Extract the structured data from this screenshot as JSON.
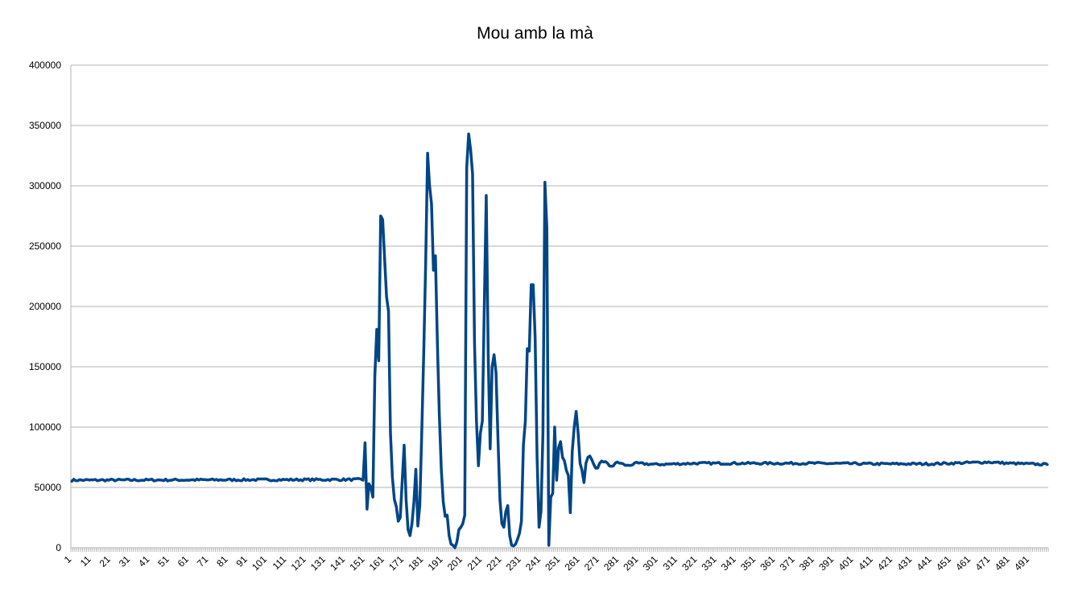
{
  "chart_data": {
    "type": "line",
    "title": "Mou amb la mà",
    "xlabel": "",
    "ylabel": "",
    "ylim": [
      0,
      400000
    ],
    "yticks": [
      0,
      50000,
      100000,
      150000,
      200000,
      250000,
      300000,
      350000,
      400000
    ],
    "ytick_labels": [
      "0",
      "50000",
      "100000",
      "150000",
      "200000",
      "250000",
      "300000",
      "350000",
      "400000"
    ],
    "x_range": [
      1,
      500
    ],
    "xtick_labels": [
      "1",
      "11",
      "21",
      "31",
      "41",
      "51",
      "61",
      "71",
      "81",
      "91",
      "101",
      "111",
      "121",
      "131",
      "141",
      "151",
      "161",
      "171",
      "181",
      "191",
      "201",
      "211",
      "221",
      "231",
      "241",
      "251",
      "261",
      "271",
      "281",
      "291",
      "301",
      "311",
      "321",
      "331",
      "341",
      "351",
      "361",
      "371",
      "381",
      "391",
      "401",
      "411",
      "421",
      "431",
      "441",
      "451",
      "461",
      "471",
      "481",
      "491"
    ],
    "grid": "horizontal",
    "legend": "none",
    "series": [
      {
        "color": "#004586",
        "points": [
          [
            1,
            56000
          ],
          [
            148,
            56500
          ],
          [
            150,
            56000
          ],
          [
            151,
            87000
          ],
          [
            152,
            32000
          ],
          [
            153,
            53000
          ],
          [
            154,
            50000
          ],
          [
            155,
            42000
          ],
          [
            156,
            142000
          ],
          [
            157,
            181000
          ],
          [
            158,
            155000
          ],
          [
            159,
            275000
          ],
          [
            160,
            272000
          ],
          [
            161,
            240000
          ],
          [
            162,
            208000
          ],
          [
            163,
            196000
          ],
          [
            164,
            95000
          ],
          [
            165,
            58000
          ],
          [
            166,
            40000
          ],
          [
            167,
            34000
          ],
          [
            168,
            22000
          ],
          [
            169,
            25000
          ],
          [
            170,
            55000
          ],
          [
            171,
            85000
          ],
          [
            172,
            40000
          ],
          [
            173,
            15000
          ],
          [
            174,
            10000
          ],
          [
            175,
            20000
          ],
          [
            176,
            38000
          ],
          [
            177,
            65000
          ],
          [
            178,
            18000
          ],
          [
            179,
            35000
          ],
          [
            180,
            95000
          ],
          [
            181,
            160000
          ],
          [
            182,
            235000
          ],
          [
            183,
            327000
          ],
          [
            184,
            300000
          ],
          [
            185,
            285000
          ],
          [
            186,
            230000
          ],
          [
            187,
            242000
          ],
          [
            188,
            170000
          ],
          [
            189,
            110000
          ],
          [
            190,
            65000
          ],
          [
            191,
            38000
          ],
          [
            192,
            26000
          ],
          [
            193,
            27000
          ],
          [
            194,
            10000
          ],
          [
            195,
            3000
          ],
          [
            196,
            2000
          ],
          [
            197,
            0
          ],
          [
            198,
            5000
          ],
          [
            199,
            15000
          ],
          [
            200,
            17000
          ],
          [
            201,
            20000
          ],
          [
            202,
            27000
          ],
          [
            203,
            315000
          ],
          [
            204,
            343000
          ],
          [
            205,
            330000
          ],
          [
            206,
            310000
          ],
          [
            207,
            170000
          ],
          [
            208,
            105000
          ],
          [
            209,
            68000
          ],
          [
            210,
            95000
          ],
          [
            211,
            105000
          ],
          [
            212,
            200000
          ],
          [
            213,
            292000
          ],
          [
            214,
            160000
          ],
          [
            215,
            82000
          ],
          [
            216,
            150000
          ],
          [
            217,
            160000
          ],
          [
            218,
            145000
          ],
          [
            219,
            90000
          ],
          [
            220,
            40000
          ],
          [
            221,
            20000
          ],
          [
            222,
            17000
          ],
          [
            223,
            30000
          ],
          [
            224,
            35000
          ],
          [
            225,
            10000
          ],
          [
            226,
            2000
          ],
          [
            227,
            1500
          ],
          [
            228,
            3000
          ],
          [
            229,
            7000
          ],
          [
            230,
            12000
          ],
          [
            231,
            22000
          ],
          [
            232,
            85000
          ],
          [
            233,
            105000
          ],
          [
            234,
            165000
          ],
          [
            235,
            163000
          ],
          [
            236,
            218000
          ],
          [
            237,
            218000
          ],
          [
            238,
            175000
          ],
          [
            239,
            75000
          ],
          [
            240,
            17000
          ],
          [
            241,
            30000
          ],
          [
            242,
            95000
          ],
          [
            243,
            303000
          ],
          [
            244,
            265000
          ],
          [
            245,
            2000
          ],
          [
            246,
            42000
          ],
          [
            247,
            45000
          ],
          [
            248,
            100000
          ],
          [
            249,
            56000
          ],
          [
            250,
            83000
          ],
          [
            251,
            88000
          ],
          [
            252,
            75000
          ],
          [
            253,
            72000
          ],
          [
            254,
            64000
          ],
          [
            255,
            60000
          ],
          [
            256,
            29000
          ],
          [
            257,
            80000
          ],
          [
            258,
            100000
          ],
          [
            259,
            113000
          ],
          [
            260,
            95000
          ],
          [
            261,
            70000
          ],
          [
            262,
            64000
          ],
          [
            263,
            54000
          ],
          [
            264,
            70000
          ],
          [
            265,
            75000
          ],
          [
            266,
            76000
          ],
          [
            267,
            73000
          ],
          [
            268,
            69000
          ],
          [
            269,
            66000
          ],
          [
            270,
            66000
          ],
          [
            271,
            70000
          ],
          [
            272,
            72000
          ],
          [
            274,
            71000
          ],
          [
            276,
            68000
          ],
          [
            278,
            68000
          ],
          [
            280,
            71000
          ],
          [
            285,
            68000
          ],
          [
            290,
            70000
          ],
          [
            300,
            69000
          ],
          [
            320,
            70000
          ],
          [
            350,
            70000
          ],
          [
            380,
            70000
          ],
          [
            410,
            69500
          ],
          [
            440,
            69500
          ],
          [
            470,
            71000
          ],
          [
            480,
            70000
          ],
          [
            500,
            69000
          ]
        ]
      }
    ]
  }
}
